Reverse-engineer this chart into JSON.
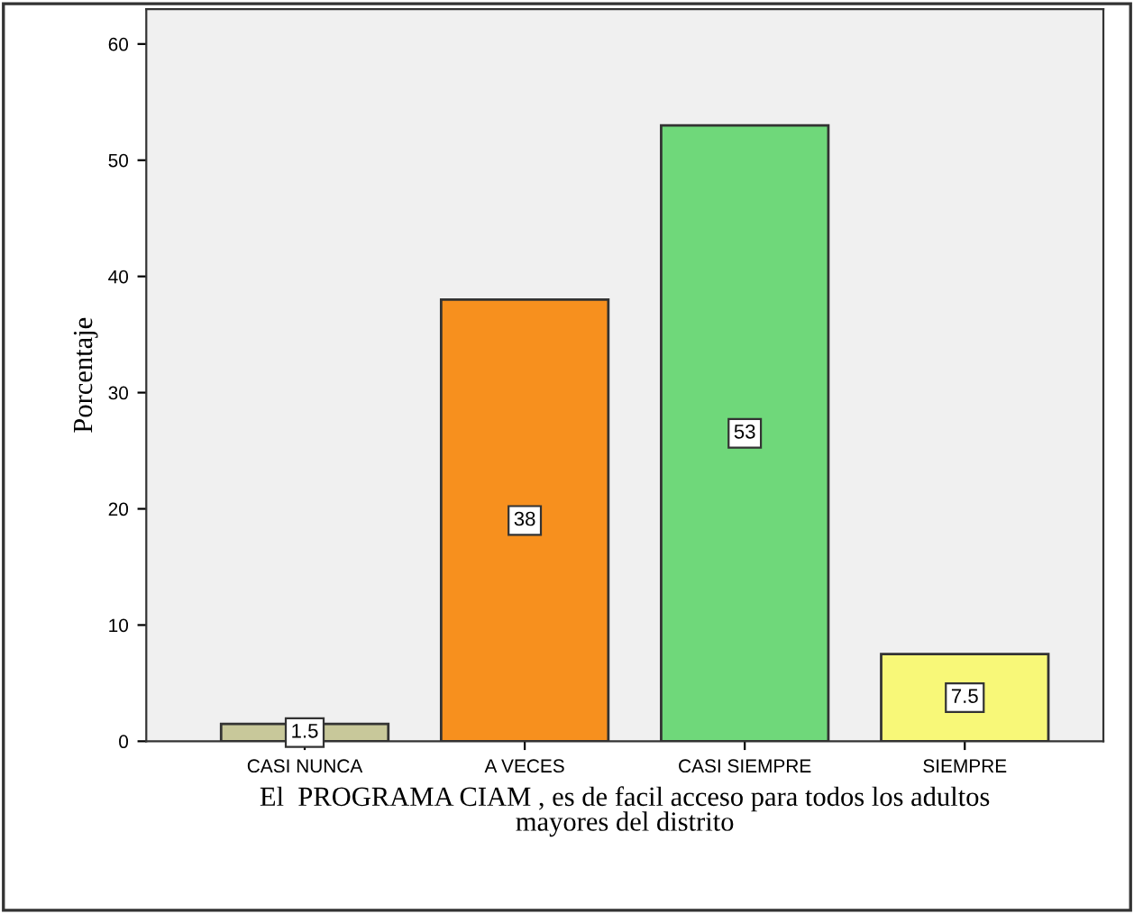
{
  "chart_data": {
    "type": "bar",
    "xlabel": "El  PROGRAMA CIAM , es de facil acceso para todos los adultos\nmayores del distrito",
    "ylabel": "Porcentaje",
    "categories": [
      "CASI NUNCA",
      "A VECES",
      "CASI SIEMPRE",
      "SIEMPRE"
    ],
    "values": [
      1.5,
      38,
      53,
      7.5
    ],
    "colors": [
      "#c8c89a",
      "#f7901e",
      "#6fd87a",
      "#f8f878"
    ],
    "ylim": [
      0,
      63
    ],
    "yticks": [
      0,
      10,
      20,
      30,
      40,
      50,
      60
    ],
    "data_labels": true,
    "grid": false,
    "legend": false
  }
}
